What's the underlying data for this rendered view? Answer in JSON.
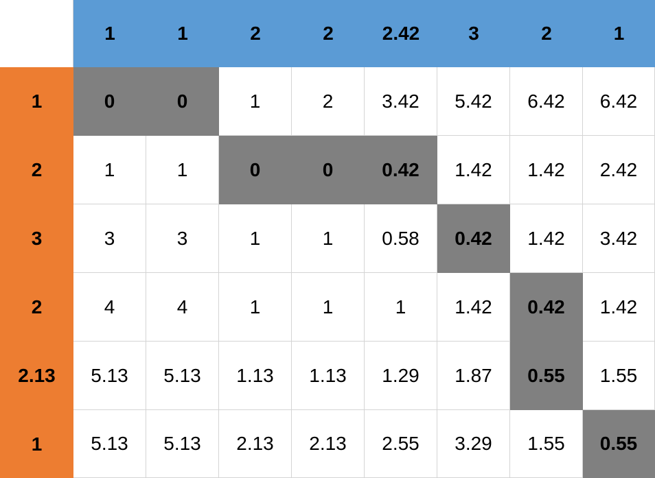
{
  "table": {
    "col_headers": [
      "1",
      "1",
      "2",
      "2",
      "2.42",
      "3",
      "2",
      "1"
    ],
    "rows": [
      {
        "header": "1",
        "cells": [
          "0",
          "0",
          "1",
          "2",
          "3.42",
          "5.42",
          "6.42",
          "6.42"
        ],
        "highlighted": [
          0,
          1
        ]
      },
      {
        "header": "2",
        "cells": [
          "1",
          "1",
          "0",
          "0",
          "0.42",
          "1.42",
          "1.42",
          "2.42"
        ],
        "highlighted": [
          2,
          3,
          4
        ]
      },
      {
        "header": "3",
        "cells": [
          "3",
          "3",
          "1",
          "1",
          "0.58",
          "0.42",
          "1.42",
          "3.42"
        ],
        "highlighted": [
          5
        ]
      },
      {
        "header": "2",
        "cells": [
          "4",
          "4",
          "1",
          "1",
          "1",
          "1.42",
          "0.42",
          "1.42"
        ],
        "highlighted": [
          6
        ]
      },
      {
        "header": "2.13",
        "cells": [
          "5.13",
          "5.13",
          "1.13",
          "1.13",
          "1.29",
          "1.87",
          "0.55",
          "1.55"
        ],
        "highlighted": [
          6
        ]
      },
      {
        "header": "1",
        "cells": [
          "5.13",
          "5.13",
          "2.13",
          "2.13",
          "2.55",
          "3.29",
          "1.55",
          "0.55"
        ],
        "highlighted": [
          7
        ]
      }
    ]
  },
  "colors": {
    "header_row": "#5b9bd5",
    "header_col": "#ed7d31",
    "highlight": "#808080"
  }
}
